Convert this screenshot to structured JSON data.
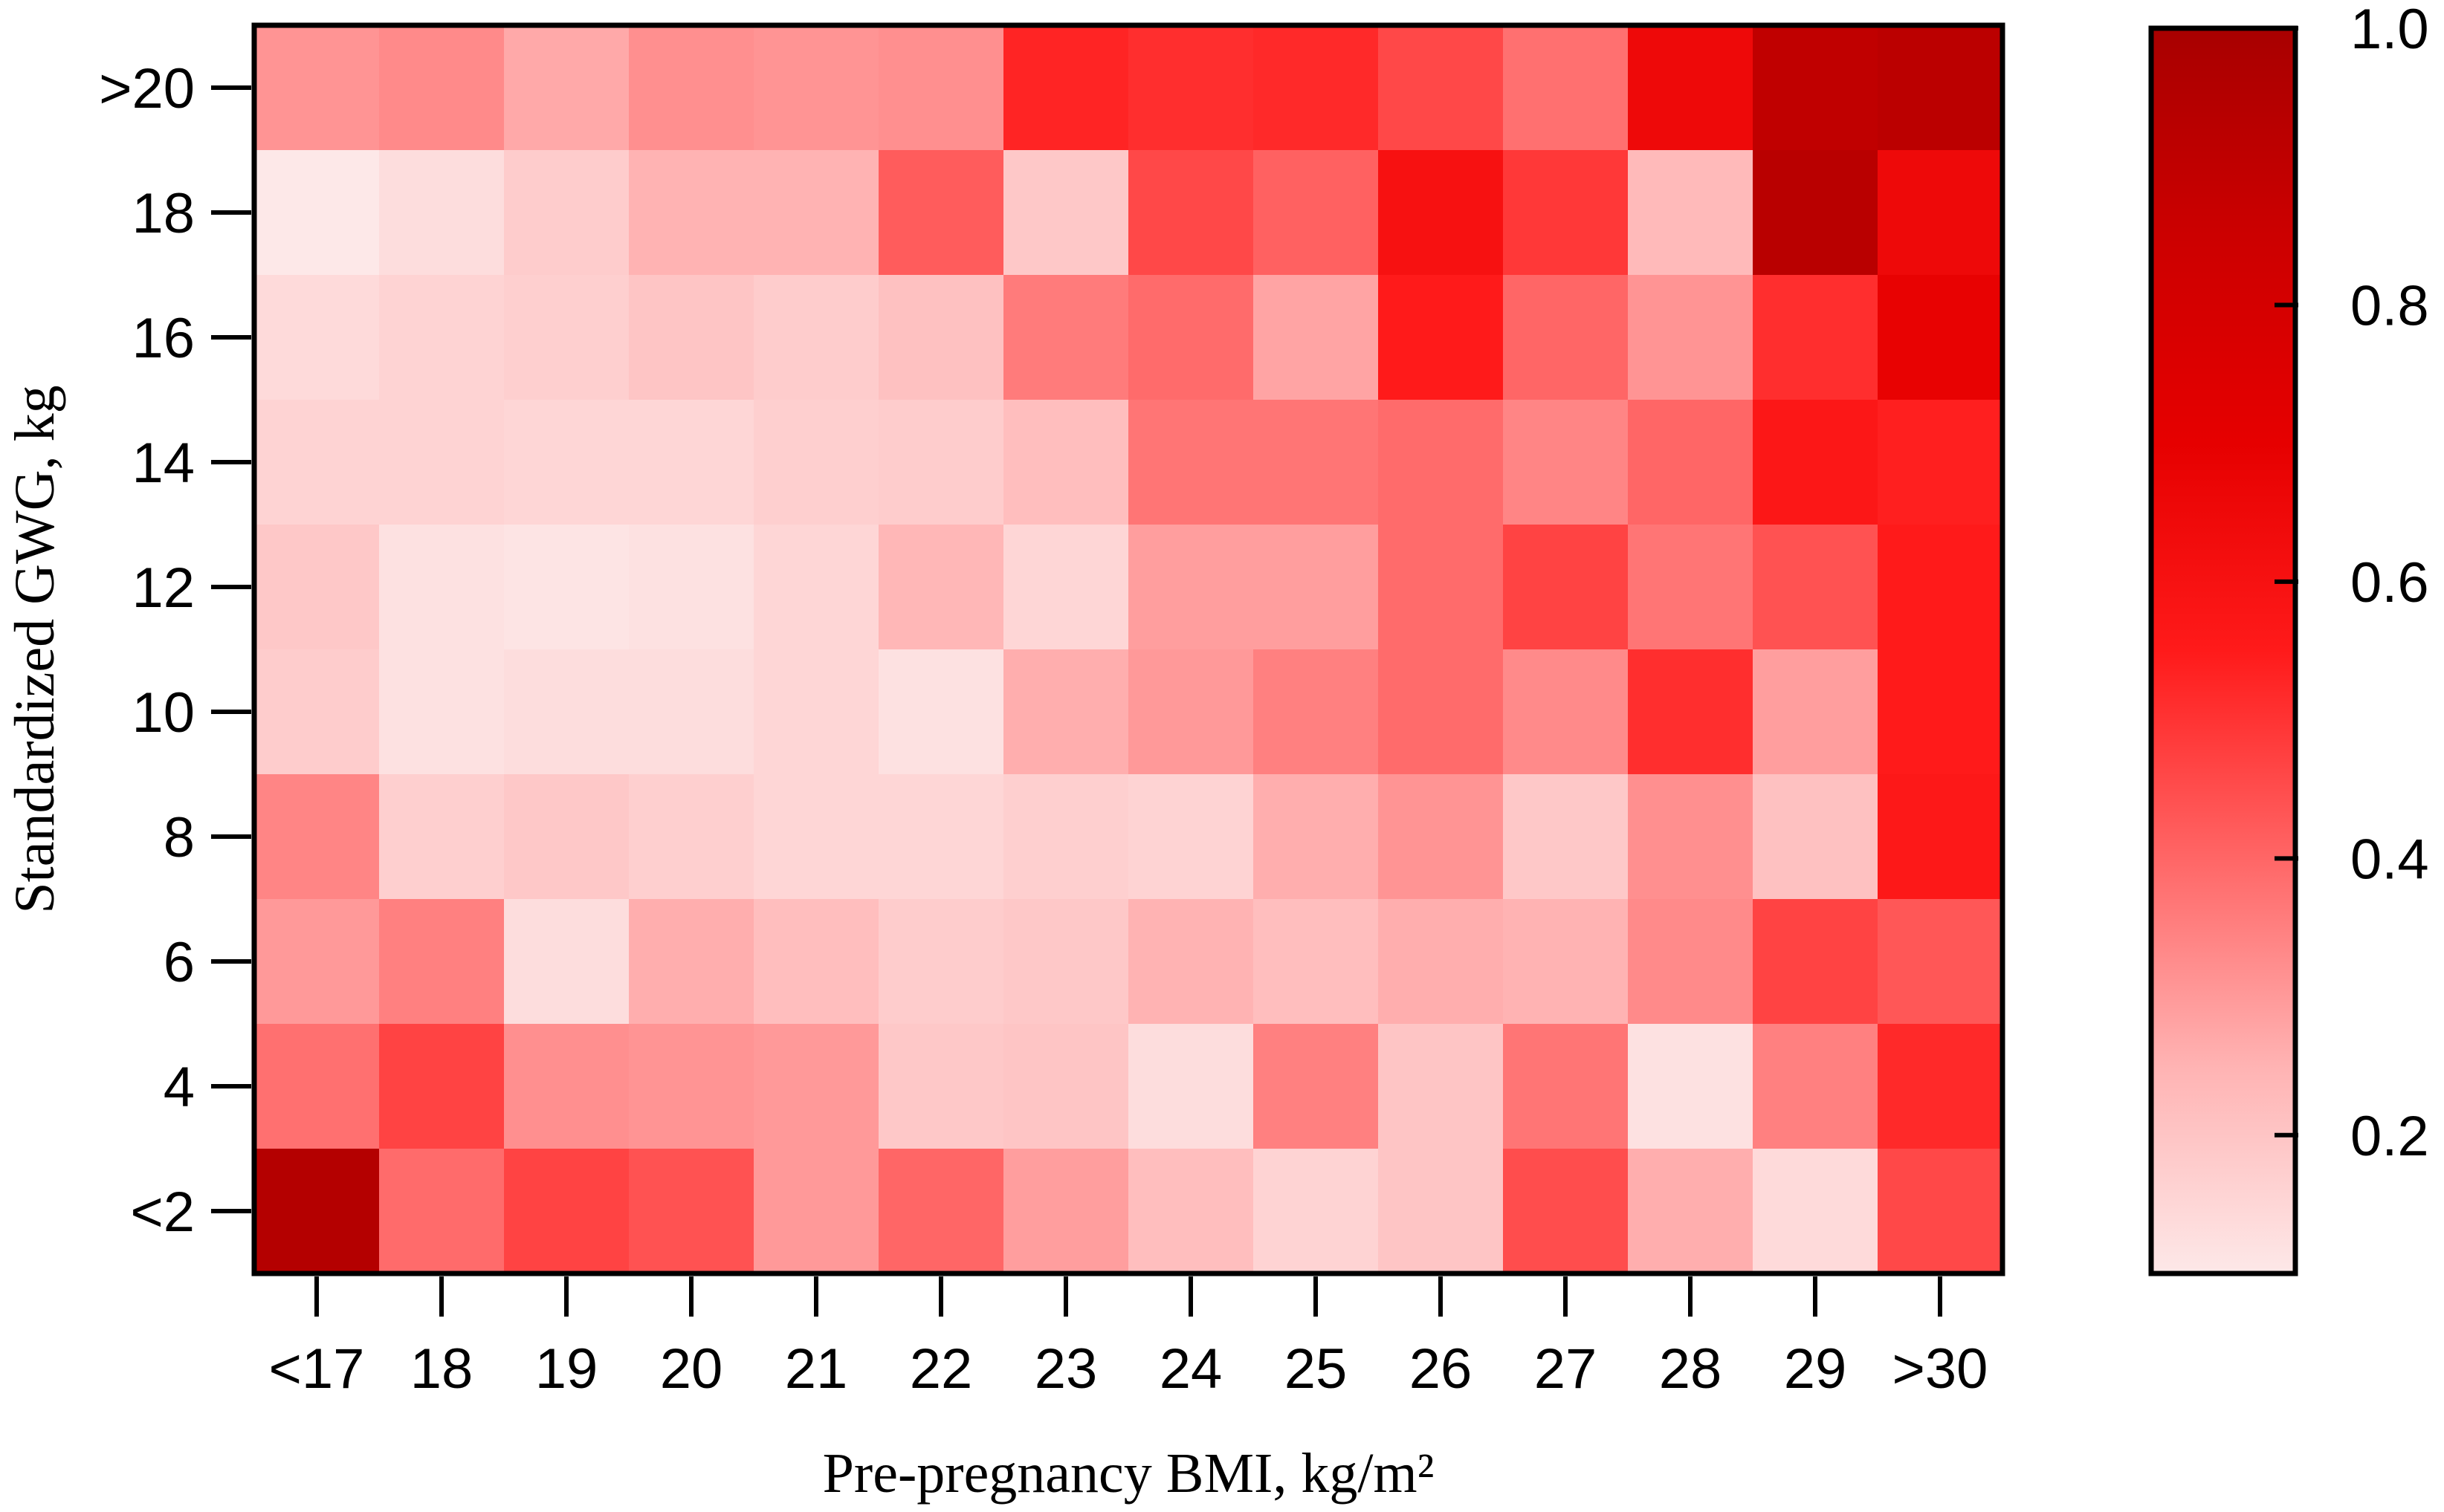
{
  "chart_data": {
    "type": "heatmap",
    "xlabel": "Pre-pregnancy BMI,  kg/m²",
    "ylabel": "Standardized GWG,  kg",
    "x_categories": [
      "<17",
      "18",
      "19",
      "20",
      "21",
      "22",
      "23",
      "24",
      "25",
      "26",
      "27",
      "28",
      "29",
      ">30"
    ],
    "y_categories": [
      ">20",
      "18",
      "16",
      "14",
      "12",
      "10",
      "8",
      "6",
      "4",
      "<2"
    ],
    "values": [
      [
        0.31,
        0.33,
        0.27,
        0.32,
        0.31,
        0.32,
        0.53,
        0.51,
        0.52,
        0.46,
        0.38,
        0.65,
        0.9,
        0.92
      ],
      [
        0.08,
        0.13,
        0.18,
        0.25,
        0.25,
        0.42,
        0.19,
        0.46,
        0.41,
        0.6,
        0.49,
        0.23,
        0.93,
        0.65
      ],
      [
        0.14,
        0.16,
        0.17,
        0.2,
        0.18,
        0.21,
        0.36,
        0.39,
        0.28,
        0.55,
        0.4,
        0.31,
        0.51,
        0.69
      ],
      [
        0.16,
        0.16,
        0.15,
        0.15,
        0.17,
        0.18,
        0.22,
        0.37,
        0.37,
        0.39,
        0.34,
        0.4,
        0.57,
        0.54
      ],
      [
        0.19,
        0.12,
        0.11,
        0.12,
        0.15,
        0.24,
        0.15,
        0.29,
        0.29,
        0.39,
        0.47,
        0.37,
        0.44,
        0.55
      ],
      [
        0.18,
        0.12,
        0.13,
        0.13,
        0.15,
        0.12,
        0.26,
        0.3,
        0.35,
        0.39,
        0.33,
        0.51,
        0.29,
        0.55
      ],
      [
        0.34,
        0.17,
        0.19,
        0.17,
        0.15,
        0.15,
        0.17,
        0.16,
        0.26,
        0.31,
        0.19,
        0.32,
        0.21,
        0.56
      ],
      [
        0.3,
        0.35,
        0.13,
        0.26,
        0.22,
        0.18,
        0.19,
        0.25,
        0.22,
        0.26,
        0.25,
        0.33,
        0.47,
        0.43
      ],
      [
        0.38,
        0.47,
        0.32,
        0.31,
        0.3,
        0.19,
        0.2,
        0.13,
        0.35,
        0.2,
        0.37,
        0.12,
        0.35,
        0.52
      ],
      [
        0.95,
        0.39,
        0.47,
        0.44,
        0.3,
        0.4,
        0.29,
        0.22,
        0.16,
        0.2,
        0.45,
        0.26,
        0.14,
        0.46
      ]
    ],
    "colorbar": {
      "ticks": [
        0.2,
        0.4,
        0.6,
        0.8,
        1.0
      ],
      "tick_labels": [
        "0.2",
        "0.4",
        "0.6",
        "0.8",
        "1.0"
      ],
      "range": [
        0.1,
        1.0
      ],
      "colors": [
        "#fde8e8",
        "#ffb3b3",
        "#ff6666",
        "#ff1a1a",
        "#e60000",
        "#cc0000",
        "#a80000"
      ]
    },
    "legend": "right",
    "grid": false
  }
}
